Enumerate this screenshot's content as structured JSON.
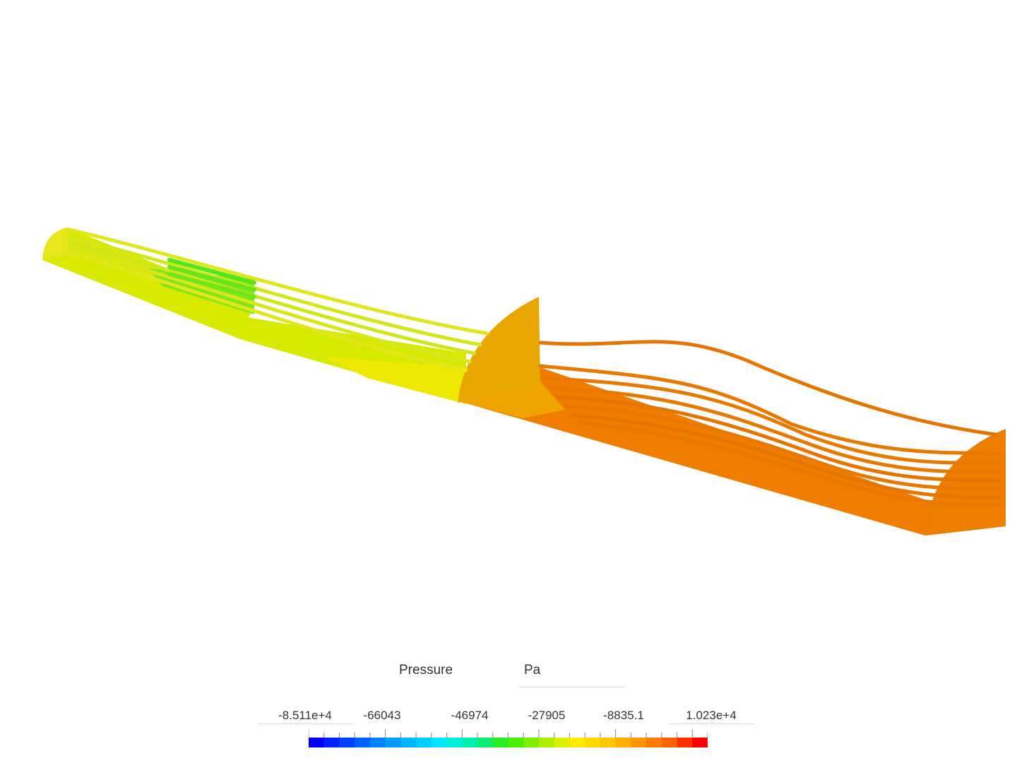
{
  "legend": {
    "title": "Pressure",
    "unit": "Pa",
    "tick_labels": [
      "-8.511e+4",
      "-66043",
      "-46974",
      "-27905",
      "-8835.1",
      "1.023e+4"
    ],
    "min": -85110,
    "max": 10230,
    "colormap": [
      "#0000ff",
      "#0044ff",
      "#0088ff",
      "#00bbff",
      "#00eeff",
      "#00ee99",
      "#33ee00",
      "#99ee00",
      "#ffee00",
      "#ffcc00",
      "#ff9900",
      "#ff6600",
      "#ff0000"
    ]
  },
  "scene": {
    "colors": {
      "inlet": "#e6e61a",
      "inlet_green": "#7fe61a",
      "mid_section": "#d4e600",
      "baffle": "#e8a600",
      "outlet_body": "#f07a00",
      "outlet_cap": "#ee7e00",
      "streamline_yellow": "#e2e21a",
      "streamline_orange": "#e57400"
    }
  }
}
